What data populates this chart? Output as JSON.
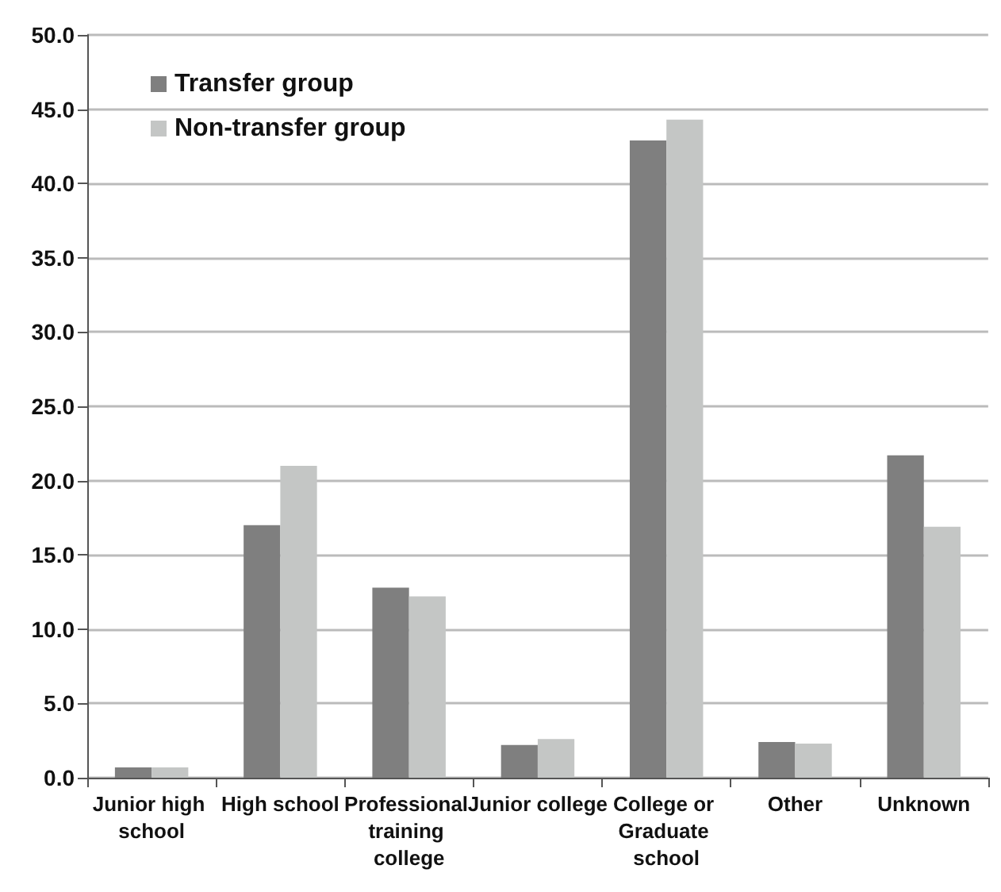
{
  "chart_data": {
    "type": "bar",
    "categories": [
      "Junior high school",
      "High school",
      "Professional training college",
      "Junior college",
      "College or Graduate school",
      "Other",
      "Unknown"
    ],
    "series": [
      {
        "name": "Transfer group",
        "color": "#7f7f7f",
        "values": [
          0.7,
          17.0,
          12.8,
          2.2,
          42.9,
          2.4,
          21.7
        ]
      },
      {
        "name": "Non-transfer group",
        "color": "#c4c6c5",
        "values": [
          0.7,
          21.0,
          12.2,
          2.6,
          44.3,
          2.3,
          16.9
        ]
      }
    ],
    "ylim": [
      0,
      50
    ],
    "yticks": [
      {
        "value": 0,
        "label": "0.0"
      },
      {
        "value": 5,
        "label": "5.0"
      },
      {
        "value": 10,
        "label": "10.0"
      },
      {
        "value": 15,
        "label": "15.0"
      },
      {
        "value": 20,
        "label": "20.0"
      },
      {
        "value": 25,
        "label": "25.0"
      },
      {
        "value": 30,
        "label": "30.0"
      },
      {
        "value": 35,
        "label": "35.0"
      },
      {
        "value": 40,
        "label": "40.0"
      },
      {
        "value": 45,
        "label": "45.0"
      },
      {
        "value": 50,
        "label": "50.0"
      }
    ],
    "grid": "y",
    "legend": "top left"
  }
}
